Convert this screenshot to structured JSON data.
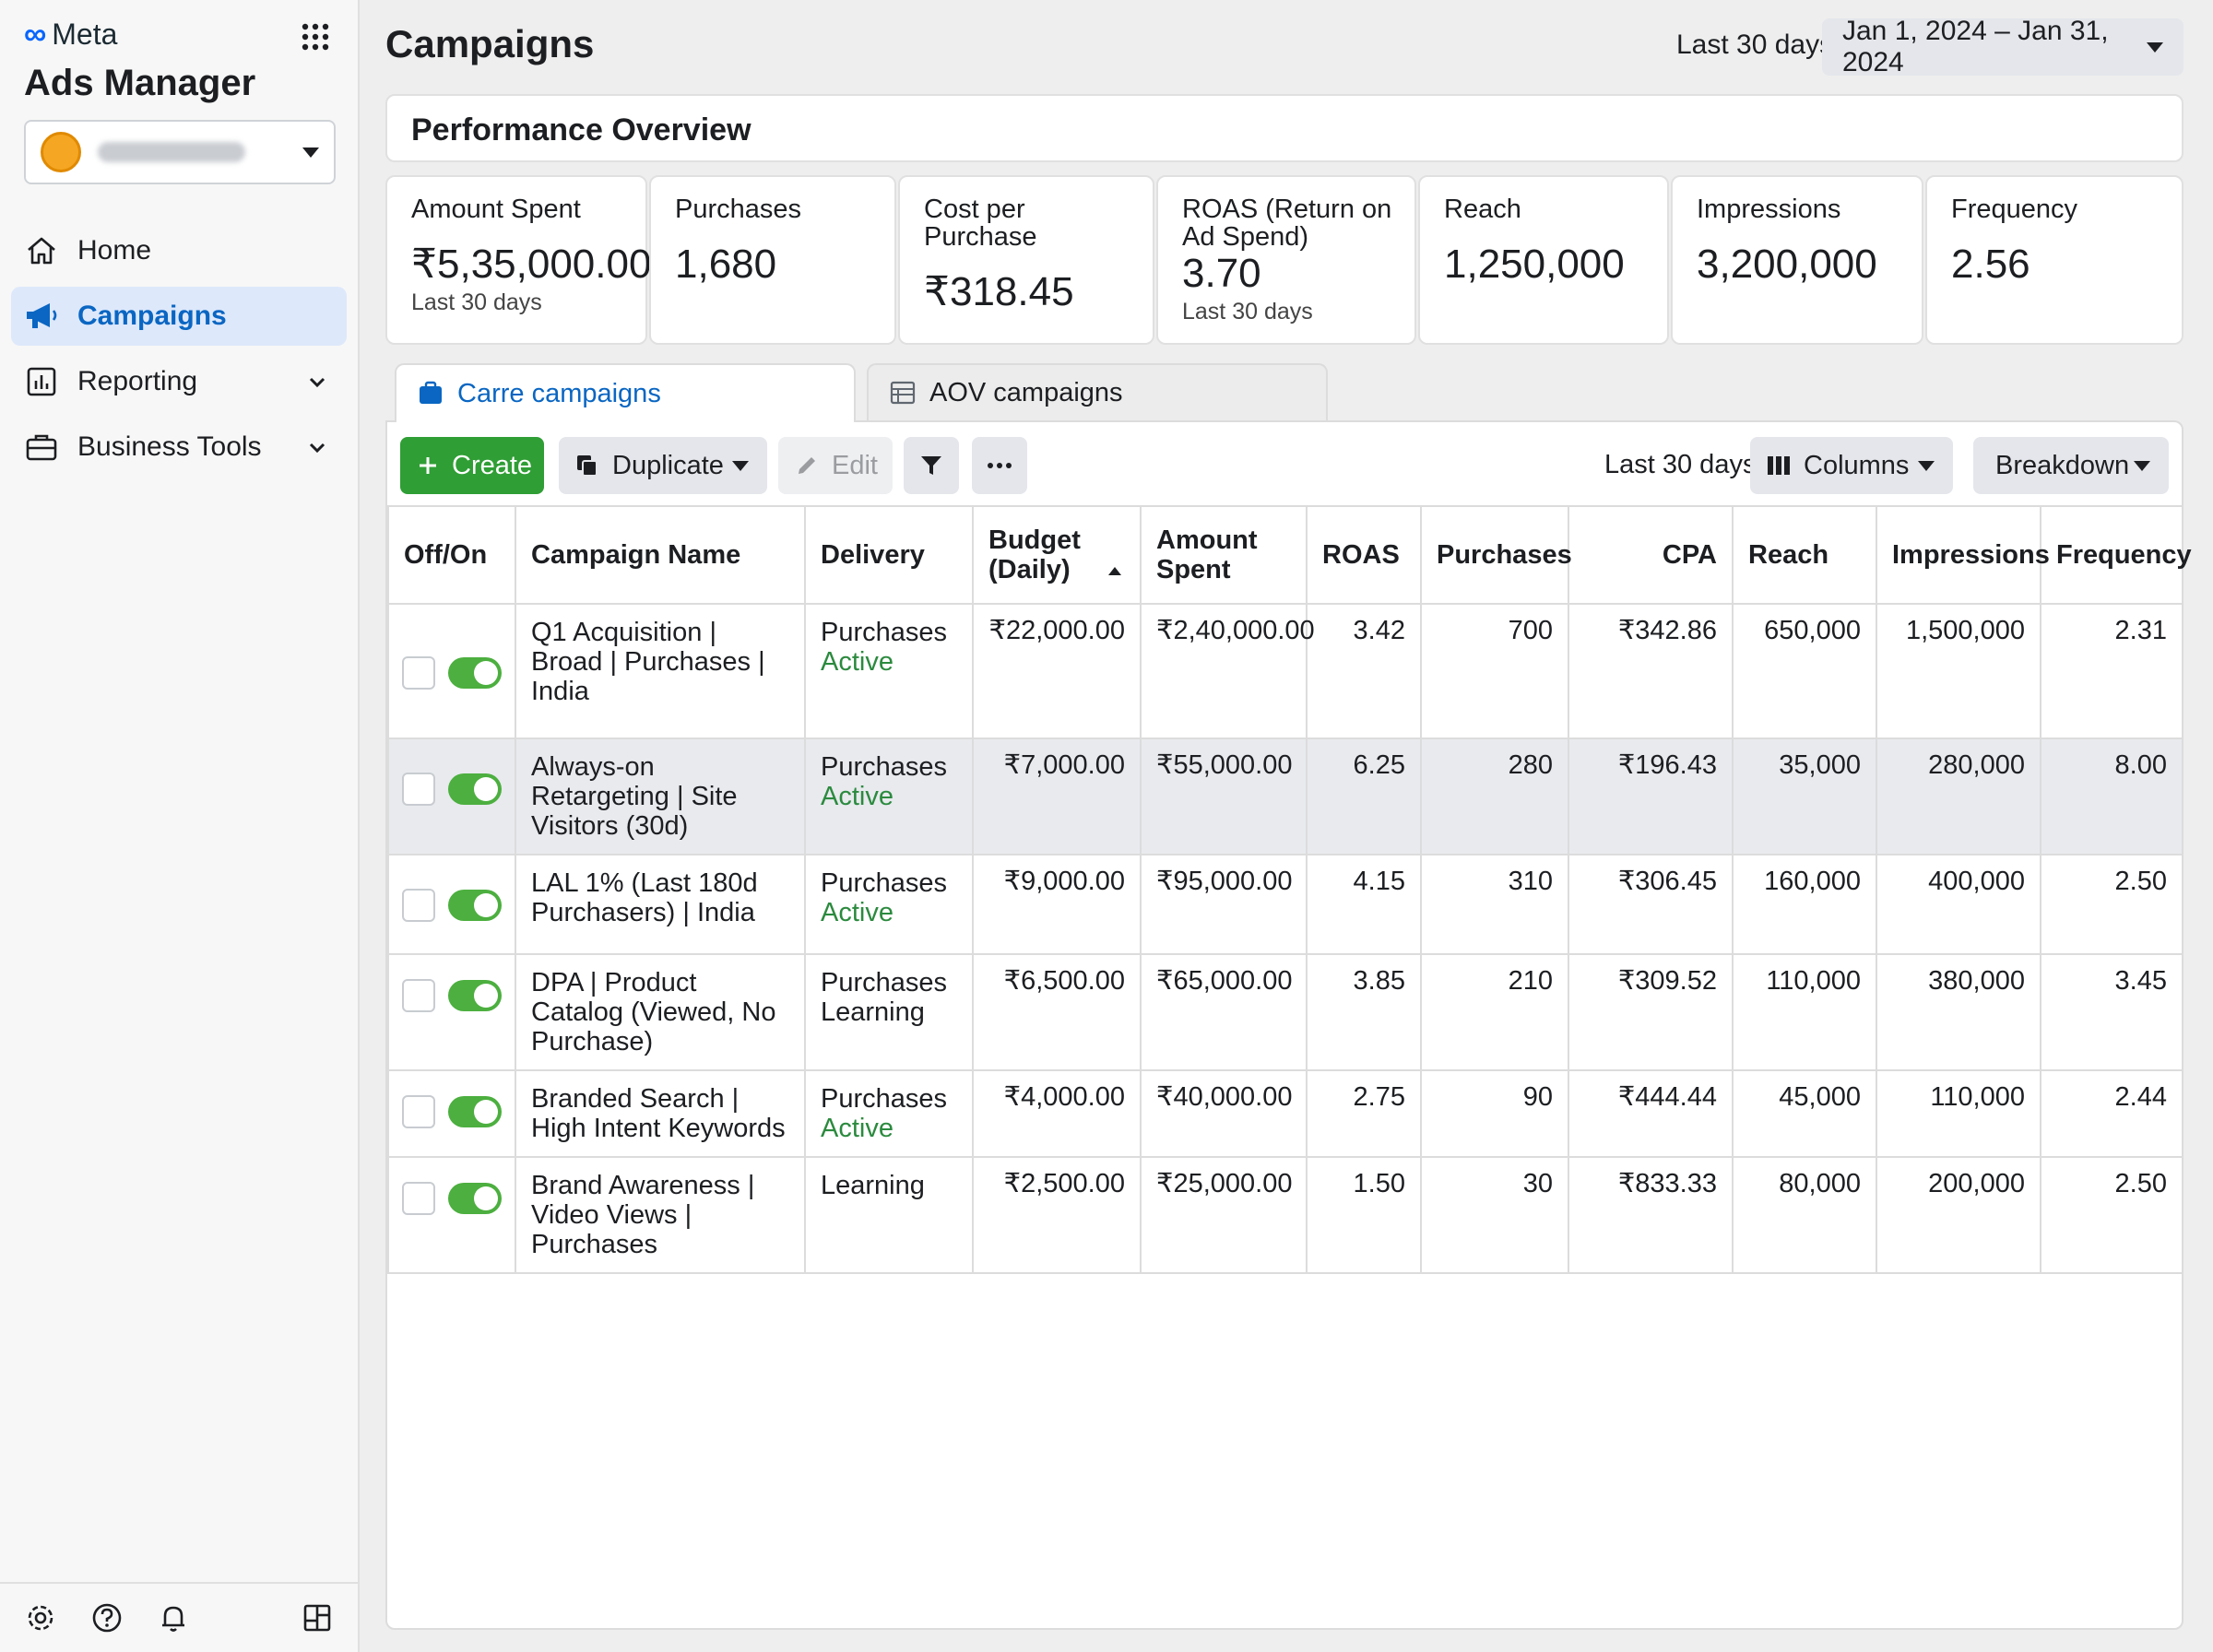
{
  "sidebar": {
    "brand": "Meta",
    "app_title": "Ads Manager",
    "nav": [
      {
        "label": "Home",
        "icon": "home-icon"
      },
      {
        "label": "Campaigns",
        "icon": "megaphone-icon",
        "active": true
      },
      {
        "label": "Reporting",
        "icon": "reporting-icon"
      },
      {
        "label": "Business Tools",
        "icon": "briefcase-icon"
      }
    ],
    "bottom_icons": [
      "settings-icon",
      "help-icon",
      "notifications-icon",
      "layout-icon"
    ]
  },
  "header": {
    "title": "Campaigns",
    "date_range_label": "Last 30 days",
    "date_range_value": "Jan 1, 2024 – Jan 31, 2024"
  },
  "overview": {
    "title": "Performance Overview",
    "kpis": [
      {
        "label": "Amount Spent",
        "value": "₹5,35,000.00",
        "sub": "Last 30 days"
      },
      {
        "label": "Purchases",
        "value": "1,680",
        "sub": ""
      },
      {
        "label": "Cost per Purchase",
        "value": "₹318.45",
        "sub": ""
      },
      {
        "label": "ROAS (Return on Ad Spend)",
        "value": "3.70",
        "sub": "Last 30 days"
      },
      {
        "label": "Reach",
        "value": "1,250,000",
        "sub": ""
      },
      {
        "label": "Impressions",
        "value": "3,200,000",
        "sub": ""
      },
      {
        "label": "Frequency",
        "value": "2.56",
        "sub": ""
      }
    ]
  },
  "tabs": [
    {
      "label": "Carre campaigns",
      "active": true
    },
    {
      "label": "AOV campaigns",
      "active": false
    }
  ],
  "toolbar": {
    "create": "Create",
    "duplicate": "Duplicate",
    "edit": "Edit",
    "date_label": "Last 30 days",
    "columns": "Columns",
    "breakdown": "Breakdown"
  },
  "table": {
    "headers": [
      "Off/On",
      "Campaign Name",
      "Delivery",
      "Budget (Daily)",
      "Amount Spent",
      "ROAS",
      "Purchases",
      "CPA",
      "Reach",
      "Impressions",
      "Frequency"
    ],
    "rows": [
      {
        "on": true,
        "name": "Q1 Acquisition | Broad | Purchases | India",
        "delivery": "Purchases",
        "status": "Active",
        "budget": "₹22,000.00",
        "spent": "₹2,40,000.00",
        "roas": "3.42",
        "purchases": "700",
        "cpa": "₹342.86",
        "reach": "650,000",
        "impressions": "1,500,000",
        "frequency": "2.31"
      },
      {
        "on": true,
        "name": "Always-on Retargeting | Site Visitors (30d)",
        "delivery": "Purchases",
        "status": "Active",
        "budget": "₹7,000.00",
        "spent": "₹55,000.00",
        "roas": "6.25",
        "purchases": "280",
        "cpa": "₹196.43",
        "reach": "35,000",
        "impressions": "280,000",
        "frequency": "8.00"
      },
      {
        "on": true,
        "name": "LAL 1% (Last 180d Purchasers) | India",
        "delivery": "Purchases",
        "status": "Active",
        "budget": "₹9,000.00",
        "spent": "₹95,000.00",
        "roas": "4.15",
        "purchases": "310",
        "cpa": "₹306.45",
        "reach": "160,000",
        "impressions": "400,000",
        "frequency": "2.50"
      },
      {
        "on": true,
        "name": "DPA | Product Catalog (Viewed, No Purchase)",
        "delivery": "Purchases",
        "status": "Learning",
        "budget": "₹6,500.00",
        "spent": "₹65,000.00",
        "roas": "3.85",
        "purchases": "210",
        "cpa": "₹309.52",
        "reach": "110,000",
        "impressions": "380,000",
        "frequency": "3.45"
      },
      {
        "on": true,
        "name": "Branded Search | High Intent Keywords",
        "delivery": "Purchases",
        "status": "Active",
        "budget": "₹4,000.00",
        "spent": "₹40,000.00",
        "roas": "2.75",
        "purchases": "90",
        "cpa": "₹444.44",
        "reach": "45,000",
        "impressions": "110,000",
        "frequency": "2.44"
      },
      {
        "on": true,
        "name": "Brand Awareness | Video Views | Purchases",
        "delivery": "Learning",
        "status": "",
        "budget": "₹2,500.00",
        "spent": "₹25,000.00",
        "roas": "1.50",
        "purchases": "30",
        "cpa": "₹833.33",
        "reach": "80,000",
        "impressions": "200,000",
        "frequency": "2.50"
      }
    ]
  },
  "colors": {
    "accent": "#0a66c2",
    "create_green": "#2f9e35",
    "active_status": "#2b8a3e",
    "toggle_on": "#4caf3f"
  }
}
